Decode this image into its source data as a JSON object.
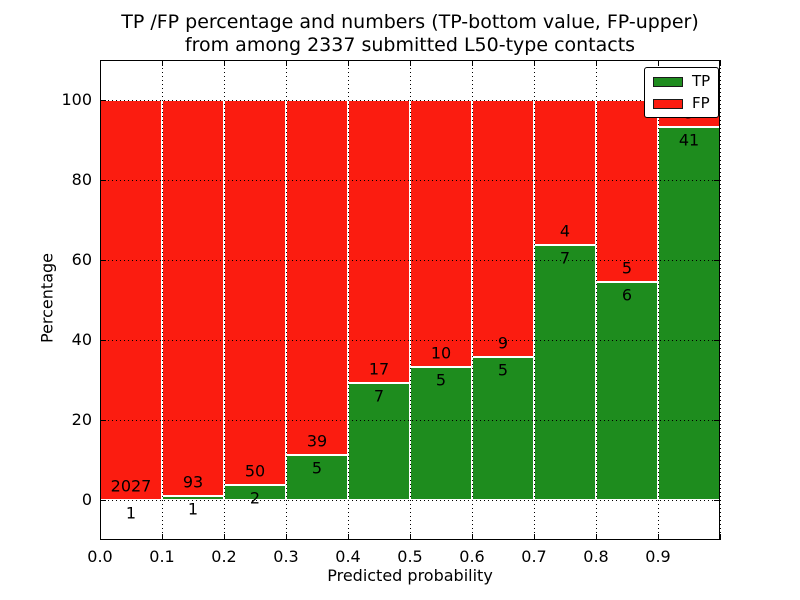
{
  "title": {
    "line1": "TP /FP percentage and numbers (TP-bottom value, FP-upper)",
    "line2": "from among 2337 submitted L50-type contacts"
  },
  "colors": {
    "tp": "#1e8c1e",
    "fp": "#fb1c10",
    "grid": "#000000",
    "text": "#000000",
    "background": "#ffffff"
  },
  "legend": {
    "position": "upper right",
    "entries": [
      {
        "label": "TP",
        "color": "#1e8c1e"
      },
      {
        "label": "FP",
        "color": "#fb1c10"
      }
    ]
  },
  "chart_data": {
    "type": "bar",
    "stacked": true,
    "normalized": "percent",
    "title": "TP /FP percentage and numbers (TP-bottom value, FP-upper)\nfrom among 2337 submitted L50-type contacts",
    "xlabel": "Predicted probability",
    "ylabel": "Percentage",
    "xlim": [
      0.0,
      1.0
    ],
    "ylim": [
      -10,
      110
    ],
    "grid": true,
    "x_tick_labels": [
      "0.0",
      "0.1",
      "0.2",
      "0.3",
      "0.4",
      "0.5",
      "0.6",
      "0.7",
      "0.8",
      "0.9"
    ],
    "y_tick_values": [
      0,
      20,
      40,
      60,
      80,
      100
    ],
    "total_contacts": 2337,
    "categories": [
      "0.0-0.1",
      "0.1-0.2",
      "0.2-0.3",
      "0.3-0.4",
      "0.4-0.5",
      "0.5-0.6",
      "0.6-0.7",
      "0.7-0.8",
      "0.8-0.9",
      "0.9-1.0"
    ],
    "series": [
      {
        "name": "TP",
        "counts": [
          1,
          1,
          2,
          5,
          7,
          5,
          5,
          7,
          6,
          41
        ]
      },
      {
        "name": "FP",
        "counts": [
          2027,
          93,
          50,
          39,
          17,
          10,
          9,
          4,
          5,
          3
        ]
      }
    ],
    "tp_percent": [
      0.05,
      1.06,
      3.85,
      11.36,
      29.17,
      33.33,
      35.71,
      63.64,
      54.55,
      93.18
    ]
  }
}
